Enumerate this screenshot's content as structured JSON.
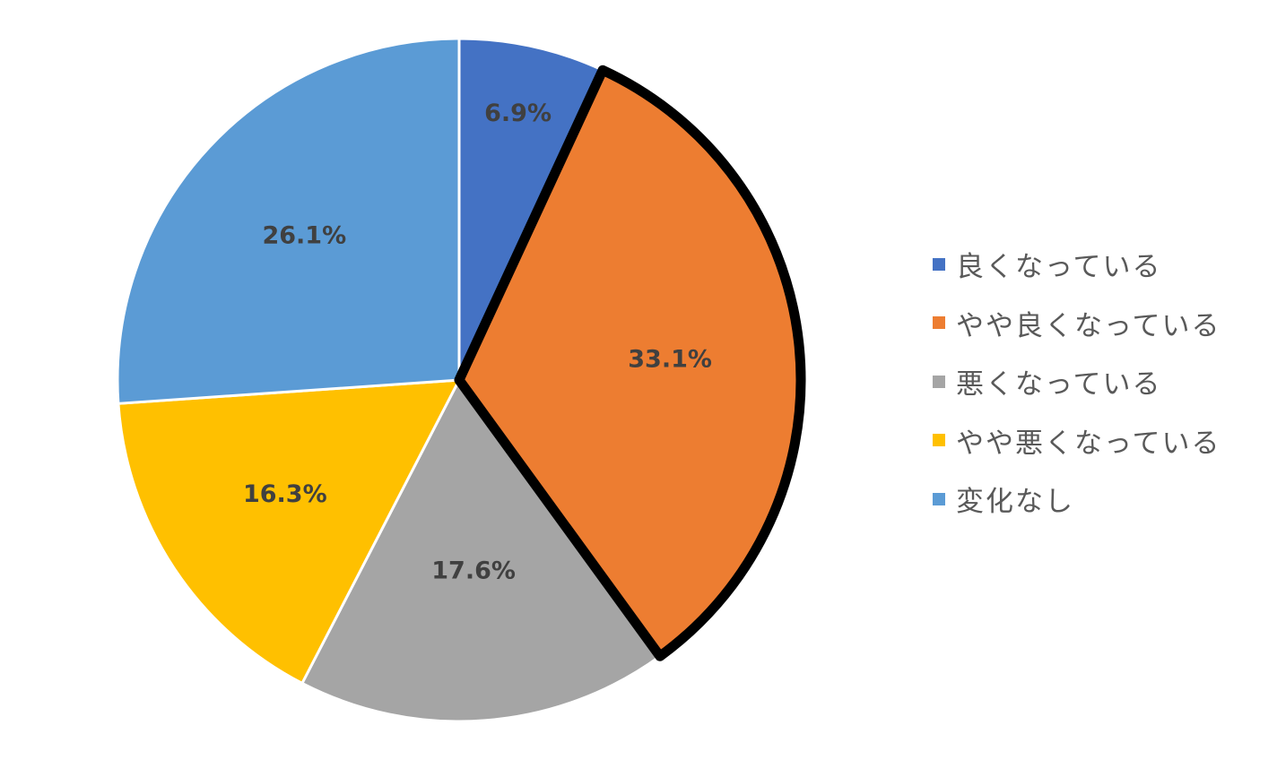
{
  "chart_data": {
    "type": "pie",
    "title": "",
    "categories": [
      "良くなっている",
      "やや良くなっている",
      "悪くなっている",
      "やや悪くなっている",
      "変化なし"
    ],
    "values": [
      6.9,
      33.1,
      17.6,
      16.3,
      26.1
    ],
    "labels": [
      "6.9%",
      "33.1%",
      "17.6%",
      "16.3%",
      "26.1%"
    ],
    "colors": [
      "#4472C4",
      "#ED7D31",
      "#A5A5A5",
      "#FFC000",
      "#5B9BD5"
    ],
    "highlighted_slice": "やや良くなっている",
    "start_angle": "12 o'clock",
    "direction": "clockwise",
    "legend_position": "right"
  }
}
